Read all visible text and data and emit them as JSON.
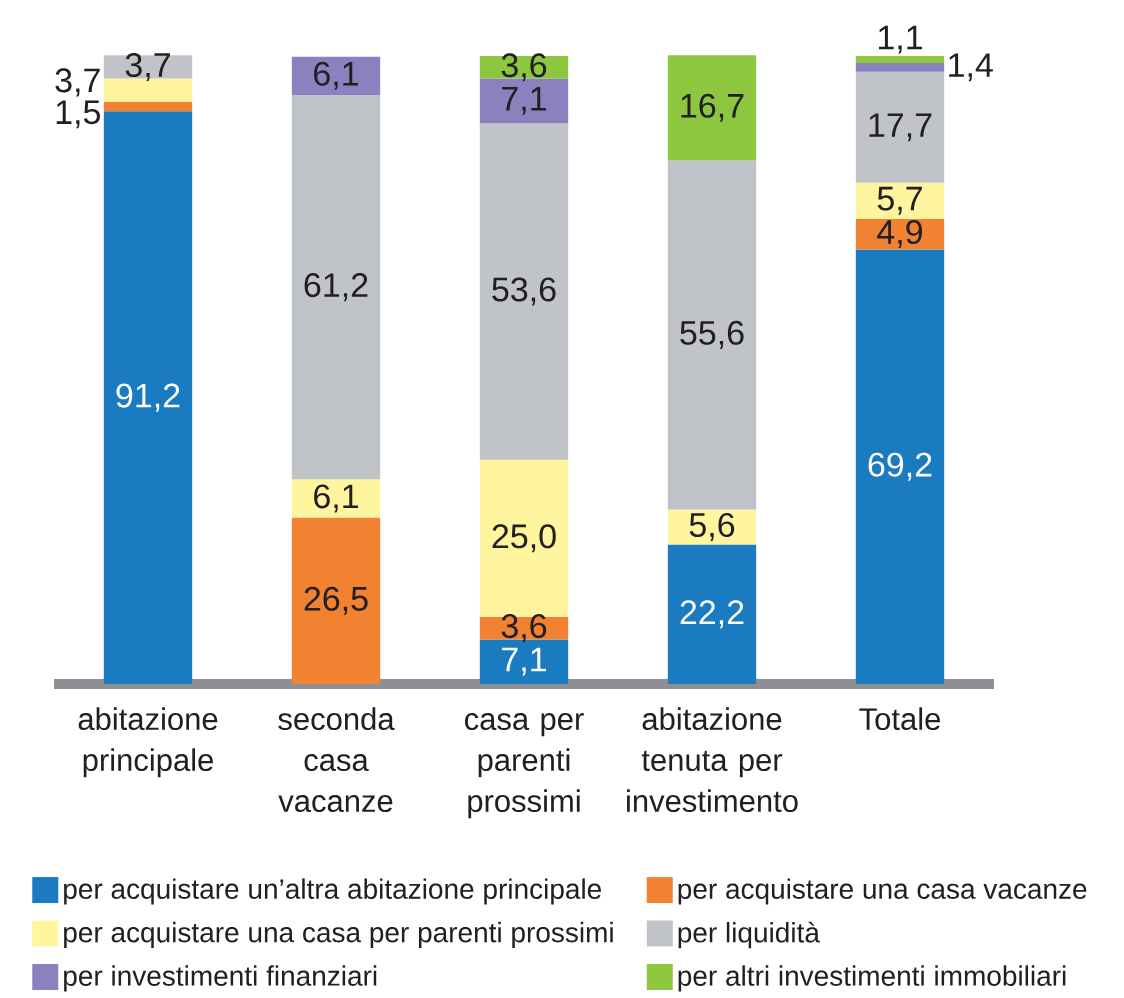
{
  "chart_data": {
    "type": "bar",
    "stacked": true,
    "legend": "bottom",
    "ylim": [
      0,
      100
    ],
    "categories": [
      "abitazione principale",
      "seconda casa vacanze",
      "casa per parenti prossimi",
      "abitazione tenuta per investimento",
      "Totale"
    ],
    "series": [
      {
        "name": "per acquistare un’altra abitazione principale",
        "color": "#1b7bc0",
        "values": [
          91.2,
          null,
          7.1,
          22.2,
          69.2
        ],
        "value_labels": [
          "91,2",
          null,
          "7,1",
          "22,2",
          "69,2"
        ]
      },
      {
        "name": "per acquistare una casa vacanze",
        "color": "#f08232",
        "values": [
          1.5,
          26.5,
          3.6,
          null,
          4.9
        ],
        "value_labels": [
          "1,5",
          "26,5",
          "3,6",
          null,
          "4,9"
        ]
      },
      {
        "name": "per acquistare una casa per parenti prossimi",
        "color": "#fff59e",
        "values": [
          3.7,
          6.1,
          25.0,
          5.6,
          5.7
        ],
        "value_labels": [
          "3,7",
          "6,1",
          "25,0",
          "5,6",
          "5,7"
        ]
      },
      {
        "name": "per liquidità",
        "color": "#c0c3c8",
        "values": [
          3.7,
          61.2,
          53.6,
          55.6,
          17.7
        ],
        "value_labels": [
          "3,7",
          "61,2",
          "53,6",
          "55,6",
          "17,7"
        ]
      },
      {
        "name": "per investimenti finanziari",
        "color": "#8982bf",
        "values": [
          null,
          6.1,
          7.1,
          null,
          1.4
        ],
        "value_labels": [
          null,
          "6,1",
          "7,1",
          null,
          "1,4"
        ]
      },
      {
        "name": "per altri investimenti immobiliari",
        "color": "#8dc63f",
        "values": [
          null,
          null,
          3.6,
          16.7,
          1.1
        ],
        "value_labels": [
          null,
          null,
          "3,6",
          "16,7",
          "1,1"
        ]
      }
    ]
  }
}
